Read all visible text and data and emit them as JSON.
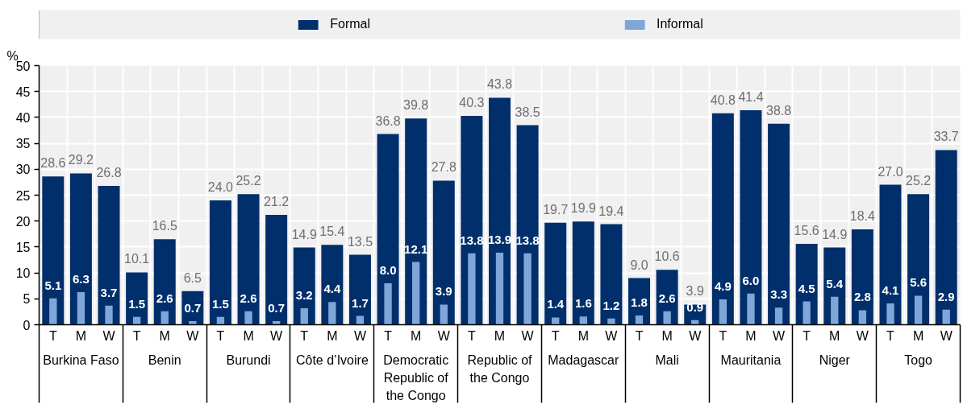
{
  "chart_data": {
    "type": "bar",
    "ylabel": "%",
    "categories": [
      "T",
      "M",
      "W",
      "T",
      "M",
      "W",
      "T",
      "M",
      "W",
      "T",
      "M",
      "W",
      "T",
      "M",
      "W",
      "T",
      "M",
      "W",
      "T",
      "M",
      "W",
      "T",
      "M",
      "W",
      "T",
      "M",
      "W",
      "T",
      "M",
      "W",
      "T",
      "M",
      "W"
    ],
    "annotations": [
      "Burkina Faso",
      "Benin",
      "Burundi",
      "Côte d’Ivoire",
      "Democratic Republic of the Congo",
      "Republic of the Congo",
      "Madagascar",
      "Mali",
      "Mauritania",
      "Niger",
      "Togo"
    ],
    "series": [
      {
        "name": "Formal",
        "color": "#002f6c",
        "values": [
          28.6,
          29.2,
          26.8,
          10.1,
          16.5,
          6.5,
          24.0,
          25.2,
          21.2,
          14.9,
          15.4,
          13.5,
          36.8,
          39.8,
          27.8,
          40.3,
          43.8,
          38.5,
          19.7,
          19.9,
          19.4,
          9.0,
          10.6,
          3.9,
          40.8,
          41.4,
          38.8,
          15.6,
          14.9,
          18.4,
          27.0,
          25.2,
          33.7
        ],
        "value_labels": [
          "28.6",
          "29.2",
          "26.8",
          "10.1",
          "16.5",
          "6.5",
          "24.0",
          "25.2",
          "21.2",
          "14.9",
          "15.4",
          "13.5",
          "36.8",
          "39.8",
          "27.8",
          "40.3",
          "43.8",
          "38.5",
          "19.7",
          "19.9",
          "19.4",
          "9.0",
          "10.6",
          "3.9",
          "40.8",
          "41.4",
          "38.8",
          "15.6",
          "14.9",
          "18.4",
          "27.0",
          "25.2",
          "33.7"
        ]
      },
      {
        "name": "Informal",
        "color": "#7fa6d9",
        "values": [
          5.1,
          6.3,
          3.7,
          1.5,
          2.6,
          0.7,
          1.5,
          2.6,
          0.7,
          3.2,
          4.4,
          1.7,
          8.0,
          12.1,
          3.9,
          13.8,
          13.9,
          13.8,
          1.4,
          1.6,
          1.2,
          1.8,
          2.6,
          0.9,
          4.9,
          6.0,
          3.3,
          4.5,
          5.4,
          2.8,
          4.1,
          5.6,
          2.9
        ],
        "value_labels": [
          "5.1",
          "6.3",
          "3.7",
          "1.5",
          "2.6",
          "0.7",
          "1.5",
          "2.6",
          "0.7",
          "3.2",
          "4.4",
          "1.7",
          "8.0",
          "12.1",
          "3.9",
          "13.8",
          "13.9",
          "13.8",
          "1.4",
          "1.6",
          "1.2",
          "1.8",
          "2.6",
          "0.9",
          "4.9",
          "6.0",
          "3.3",
          "4.5",
          "5.4",
          "2.8",
          "4.1",
          "5.6",
          "2.9"
        ]
      }
    ],
    "ylim": [
      0,
      50
    ],
    "yticks": [
      0,
      5,
      10,
      15,
      20,
      25,
      30,
      35,
      40,
      45,
      50
    ],
    "grid": true,
    "legend": "top"
  }
}
